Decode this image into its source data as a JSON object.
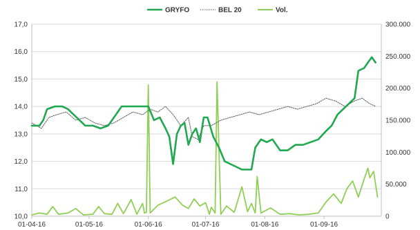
{
  "chart_data": {
    "type": "line",
    "legend": {
      "placement": "top-center",
      "entries": [
        {
          "name": "GRYFO",
          "color": "#1fa850",
          "style": "solid"
        },
        {
          "name": "BEL 20",
          "color": "#555555",
          "style": "dotted"
        },
        {
          "name": "Vol.",
          "color": "#8fcf55",
          "style": "solid"
        }
      ]
    },
    "x_range": [
      "2016-04-01",
      "2016-10-01"
    ],
    "x_ticks": [
      {
        "label": "01-04-16",
        "date": "2016-04-01"
      },
      {
        "label": "01-05-16",
        "date": "2016-05-01"
      },
      {
        "label": "01-06-16",
        "date": "2016-06-01"
      },
      {
        "label": "01-07-16",
        "date": "2016-07-01"
      },
      {
        "label": "01-08-16",
        "date": "2016-08-01"
      },
      {
        "label": "01-09-16",
        "date": "2016-09-01"
      }
    ],
    "y_left": {
      "range": [
        10,
        17
      ],
      "ticks": [
        "10,0",
        "11,0",
        "12,0",
        "13,0",
        "14,0",
        "15,0",
        "16,0",
        "17,0"
      ],
      "tick_values": [
        10,
        11,
        12,
        13,
        14,
        15,
        16,
        17
      ],
      "gridlines": true
    },
    "y_right": {
      "range": [
        0,
        300000
      ],
      "ticks": [
        "0",
        "50.000",
        "100.000",
        "150.000",
        "200.000",
        "250.000",
        "300.000"
      ],
      "tick_values": [
        0,
        50000,
        100000,
        150000,
        200000,
        250000,
        300000
      ]
    },
    "series": [
      {
        "name": "GRYFO",
        "axis": "left",
        "color": "#1fa850",
        "points": [
          [
            "2016-04-01",
            13.3
          ],
          [
            "2016-04-05",
            13.3
          ],
          [
            "2016-04-07",
            13.5
          ],
          [
            "2016-04-09",
            13.9
          ],
          [
            "2016-04-13",
            14.0
          ],
          [
            "2016-04-17",
            14.0
          ],
          [
            "2016-04-20",
            13.9
          ],
          [
            "2016-04-23",
            13.7
          ],
          [
            "2016-04-26",
            13.5
          ],
          [
            "2016-04-29",
            13.3
          ],
          [
            "2016-05-03",
            13.3
          ],
          [
            "2016-05-07",
            13.2
          ],
          [
            "2016-05-11",
            13.3
          ],
          [
            "2016-05-15",
            13.7
          ],
          [
            "2016-05-18",
            14.0
          ],
          [
            "2016-05-22",
            14.0
          ],
          [
            "2016-05-25",
            14.0
          ],
          [
            "2016-05-28",
            14.0
          ],
          [
            "2016-06-01",
            14.0
          ],
          [
            "2016-06-04",
            13.5
          ],
          [
            "2016-06-07",
            13.6
          ],
          [
            "2016-06-10",
            13.2
          ],
          [
            "2016-06-12",
            12.9
          ],
          [
            "2016-06-14",
            11.9
          ],
          [
            "2016-06-16",
            13.0
          ],
          [
            "2016-06-18",
            13.3
          ],
          [
            "2016-06-20",
            13.4
          ],
          [
            "2016-06-22",
            12.6
          ],
          [
            "2016-06-24",
            13.0
          ],
          [
            "2016-06-26",
            13.2
          ],
          [
            "2016-06-28",
            12.7
          ],
          [
            "2016-06-30",
            13.6
          ],
          [
            "2016-07-02",
            13.6
          ],
          [
            "2016-07-05",
            12.9
          ],
          [
            "2016-07-08",
            12.5
          ],
          [
            "2016-07-11",
            12.0
          ],
          [
            "2016-07-14",
            11.9
          ],
          [
            "2016-07-17",
            11.8
          ],
          [
            "2016-07-20",
            11.7
          ],
          [
            "2016-07-23",
            11.7
          ],
          [
            "2016-07-25",
            11.7
          ],
          [
            "2016-07-27",
            12.5
          ],
          [
            "2016-07-30",
            12.8
          ],
          [
            "2016-08-02",
            12.7
          ],
          [
            "2016-08-05",
            12.8
          ],
          [
            "2016-08-09",
            12.4
          ],
          [
            "2016-08-13",
            12.4
          ],
          [
            "2016-08-17",
            12.6
          ],
          [
            "2016-08-21",
            12.6
          ],
          [
            "2016-08-25",
            12.7
          ],
          [
            "2016-08-29",
            12.8
          ],
          [
            "2016-09-02",
            13.1
          ],
          [
            "2016-09-05",
            13.3
          ],
          [
            "2016-09-08",
            13.7
          ],
          [
            "2016-09-11",
            13.9
          ],
          [
            "2016-09-14",
            14.1
          ],
          [
            "2016-09-17",
            14.3
          ],
          [
            "2016-09-19",
            15.3
          ],
          [
            "2016-09-22",
            15.4
          ],
          [
            "2016-09-24",
            15.6
          ],
          [
            "2016-09-26",
            15.8
          ],
          [
            "2016-09-28",
            15.6
          ]
        ]
      },
      {
        "name": "BEL 20",
        "axis": "left",
        "color": "#555555",
        "points": [
          [
            "2016-04-01",
            13.4
          ],
          [
            "2016-04-06",
            13.2
          ],
          [
            "2016-04-10",
            13.6
          ],
          [
            "2016-04-14",
            13.7
          ],
          [
            "2016-04-19",
            13.8
          ],
          [
            "2016-04-24",
            13.5
          ],
          [
            "2016-04-29",
            13.6
          ],
          [
            "2016-05-04",
            13.4
          ],
          [
            "2016-05-09",
            13.3
          ],
          [
            "2016-05-14",
            13.4
          ],
          [
            "2016-05-19",
            13.6
          ],
          [
            "2016-05-24",
            13.8
          ],
          [
            "2016-05-29",
            13.7
          ],
          [
            "2016-06-02",
            13.9
          ],
          [
            "2016-06-06",
            13.8
          ],
          [
            "2016-06-10",
            14.0
          ],
          [
            "2016-06-14",
            13.7
          ],
          [
            "2016-06-18",
            13.3
          ],
          [
            "2016-06-22",
            13.6
          ],
          [
            "2016-06-24",
            12.9
          ],
          [
            "2016-06-27",
            12.8
          ],
          [
            "2016-06-30",
            13.3
          ],
          [
            "2016-07-04",
            13.3
          ],
          [
            "2016-07-09",
            13.5
          ],
          [
            "2016-07-14",
            13.6
          ],
          [
            "2016-07-19",
            13.7
          ],
          [
            "2016-07-24",
            13.8
          ],
          [
            "2016-07-29",
            13.7
          ],
          [
            "2016-08-03",
            13.8
          ],
          [
            "2016-08-08",
            13.9
          ],
          [
            "2016-08-13",
            14.0
          ],
          [
            "2016-08-18",
            13.9
          ],
          [
            "2016-08-23",
            14.0
          ],
          [
            "2016-08-28",
            14.1
          ],
          [
            "2016-09-02",
            14.3
          ],
          [
            "2016-09-07",
            14.2
          ],
          [
            "2016-09-12",
            14.0
          ],
          [
            "2016-09-17",
            14.2
          ],
          [
            "2016-09-21",
            14.3
          ],
          [
            "2016-09-25",
            14.1
          ],
          [
            "2016-09-28",
            14.0
          ]
        ]
      },
      {
        "name": "Vol.",
        "axis": "right",
        "color": "#8fcf55",
        "points": [
          [
            "2016-04-01",
            2000
          ],
          [
            "2016-04-05",
            5000
          ],
          [
            "2016-04-09",
            3000
          ],
          [
            "2016-04-12",
            15000
          ],
          [
            "2016-04-15",
            3000
          ],
          [
            "2016-04-20",
            5000
          ],
          [
            "2016-04-24",
            12000
          ],
          [
            "2016-04-28",
            2000
          ],
          [
            "2016-05-03",
            3000
          ],
          [
            "2016-05-06",
            15000
          ],
          [
            "2016-05-09",
            4000
          ],
          [
            "2016-05-13",
            3000
          ],
          [
            "2016-05-16",
            20000
          ],
          [
            "2016-05-19",
            4000
          ],
          [
            "2016-05-23",
            26000
          ],
          [
            "2016-05-26",
            3000
          ],
          [
            "2016-05-29",
            20000
          ],
          [
            "2016-05-30",
            5000
          ],
          [
            "2016-05-31",
            6000
          ],
          [
            "2016-06-01",
            205000
          ],
          [
            "2016-06-02",
            5000
          ],
          [
            "2016-06-06",
            17000
          ],
          [
            "2016-06-11",
            24000
          ],
          [
            "2016-06-15",
            30000
          ],
          [
            "2016-06-19",
            17000
          ],
          [
            "2016-06-22",
            12000
          ],
          [
            "2016-06-25",
            27000
          ],
          [
            "2016-06-28",
            16000
          ],
          [
            "2016-07-01",
            21000
          ],
          [
            "2016-07-03",
            3000
          ],
          [
            "2016-07-04",
            14000
          ],
          [
            "2016-07-06",
            5000
          ],
          [
            "2016-07-07",
            210000
          ],
          [
            "2016-07-09",
            3000
          ],
          [
            "2016-07-12",
            16000
          ],
          [
            "2016-07-16",
            6000
          ],
          [
            "2016-07-20",
            46000
          ],
          [
            "2016-07-23",
            7000
          ],
          [
            "2016-07-25",
            20000
          ],
          [
            "2016-07-27",
            5000
          ],
          [
            "2016-07-28",
            62000
          ],
          [
            "2016-07-30",
            5000
          ],
          [
            "2016-08-04",
            13000
          ],
          [
            "2016-08-09",
            3000
          ],
          [
            "2016-08-14",
            4000
          ],
          [
            "2016-08-19",
            2000
          ],
          [
            "2016-08-24",
            3000
          ],
          [
            "2016-08-29",
            5000
          ],
          [
            "2016-09-02",
            22000
          ],
          [
            "2016-09-06",
            35000
          ],
          [
            "2016-09-10",
            20000
          ],
          [
            "2016-09-13",
            43000
          ],
          [
            "2016-09-16",
            55000
          ],
          [
            "2016-09-19",
            30000
          ],
          [
            "2016-09-22",
            58000
          ],
          [
            "2016-09-24",
            75000
          ],
          [
            "2016-09-25",
            60000
          ],
          [
            "2016-09-27",
            70000
          ],
          [
            "2016-09-29",
            30000
          ]
        ]
      }
    ]
  }
}
